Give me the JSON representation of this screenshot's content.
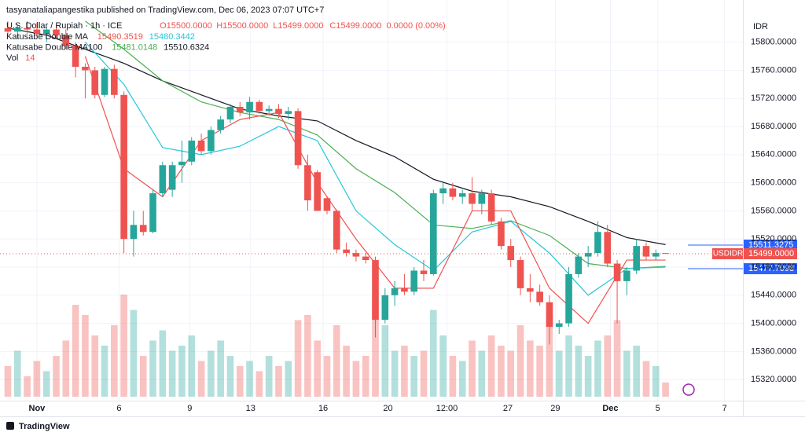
{
  "chart_data": {
    "type": "candlestick",
    "header": "tasyanataliapangestika published on TradingView.com, Dec 06, 2023 07:07 UTC+7",
    "symbol": "U.S. Dollar / Rupiah · 1h · ICE",
    "ohlc_legend": [
      {
        "text": "O15500.0000",
        "color": "#ef5350"
      },
      {
        "text": "H15500.0000",
        "color": "#ef5350"
      },
      {
        "text": "L15499.0000",
        "color": "#ef5350"
      },
      {
        "text": "C15499.0000",
        "color": "#ef5350"
      },
      {
        "text": "0.0000 (0.00%)",
        "color": "#ef5350"
      }
    ],
    "indicators": [
      {
        "name": "Katusabe Double MA",
        "values": [
          {
            "label": "15490.3519",
            "color": "#ef5350"
          },
          {
            "label": "15480.3442",
            "color": "#26c6da"
          }
        ]
      },
      {
        "name": "Katusabe Double MA100",
        "values": [
          {
            "label": "15481.0148",
            "color": "#4caf50"
          },
          {
            "label": "15510.6324",
            "color": "#131722"
          }
        ]
      },
      {
        "name": "Vol",
        "values": [
          {
            "label": "14",
            "color": "#ef5350"
          }
        ]
      }
    ],
    "currency": "IDR",
    "brand": "TradingView",
    "up_color": "#26a69a",
    "down_color": "#ef5350",
    "grid": true,
    "xlim": [
      0,
      76
    ],
    "ylim": [
      15290,
      15860
    ],
    "yticks": [
      {
        "value": 15320,
        "label": "15320.0000"
      },
      {
        "value": 15360,
        "label": "15360.0000"
      },
      {
        "value": 15400,
        "label": "15400.0000"
      },
      {
        "value": 15440,
        "label": "15440.0000"
      },
      {
        "value": 15480,
        "label": "15480.0000"
      },
      {
        "value": 15520,
        "label": "15520.0000"
      },
      {
        "value": 15560,
        "label": "15560.0000"
      },
      {
        "value": 15600,
        "label": "15600.0000"
      },
      {
        "value": 15640,
        "label": "15640.0000"
      },
      {
        "value": 15680,
        "label": "15680.0000"
      },
      {
        "value": 15720,
        "label": "15720.0000"
      },
      {
        "value": 15760,
        "label": "15760.0000"
      },
      {
        "value": 15800,
        "label": "15800.0000"
      }
    ],
    "xticks": [
      {
        "value": 3,
        "label": "Nov"
      },
      {
        "value": 11.5,
        "label": "6"
      },
      {
        "value": 18.8,
        "label": "9"
      },
      {
        "value": 25.1,
        "label": "13"
      },
      {
        "value": 32.6,
        "label": "16"
      },
      {
        "value": 39.3,
        "label": "20"
      },
      {
        "value": 45.4,
        "label": "12:00"
      },
      {
        "value": 51.7,
        "label": "27"
      },
      {
        "value": 56.6,
        "label": "29"
      },
      {
        "value": 62.3,
        "label": "Dec"
      },
      {
        "value": 67.2,
        "label": "5"
      },
      {
        "value": 74.1,
        "label": "7"
      }
    ],
    "candles": [
      [
        15820,
        15830,
        15810,
        15815
      ],
      [
        15815,
        15825,
        15805,
        15820
      ],
      [
        15820,
        15830,
        15812,
        15818
      ],
      [
        15818,
        15828,
        15808,
        15812
      ],
      [
        15812,
        15822,
        15800,
        15818
      ],
      [
        15818,
        15826,
        15806,
        15810
      ],
      [
        15810,
        15818,
        15790,
        15795
      ],
      [
        15795,
        15800,
        15750,
        15765
      ],
      [
        15765,
        15770,
        15720,
        15760
      ],
      [
        15760,
        15765,
        15720,
        15725
      ],
      [
        15725,
        15765,
        15722,
        15762
      ],
      [
        15762,
        15768,
        15720,
        15725
      ],
      [
        15725,
        15730,
        15500,
        15520
      ],
      [
        15520,
        15560,
        15495,
        15540
      ],
      [
        15540,
        15560,
        15525,
        15530
      ],
      [
        15530,
        15590,
        15528,
        15585
      ],
      [
        15585,
        15630,
        15580,
        15625
      ],
      [
        15590,
        15630,
        15580,
        15625
      ],
      [
        15625,
        15660,
        15600,
        15630
      ],
      [
        15630,
        15665,
        15625,
        15660
      ],
      [
        15660,
        15670,
        15640,
        15645
      ],
      [
        15645,
        15680,
        15640,
        15675
      ],
      [
        15675,
        15695,
        15670,
        15690
      ],
      [
        15690,
        15712,
        15685,
        15708
      ],
      [
        15708,
        15715,
        15695,
        15700
      ],
      [
        15700,
        15722,
        15690,
        15715
      ],
      [
        15715,
        15718,
        15698,
        15702
      ],
      [
        15702,
        15710,
        15695,
        15705
      ],
      [
        15705,
        15712,
        15692,
        15698
      ],
      [
        15698,
        15708,
        15690,
        15702
      ],
      [
        15702,
        15706,
        15620,
        15625
      ],
      [
        15625,
        15640,
        15560,
        15575
      ],
      [
        15615,
        15618,
        15560,
        15560
      ],
      [
        15578,
        15580,
        15555,
        15560
      ],
      [
        15560,
        15562,
        15500,
        15505
      ],
      [
        15505,
        15515,
        15495,
        15500
      ],
      [
        15500,
        15505,
        15488,
        15495
      ],
      [
        15495,
        15500,
        15485,
        15490
      ],
      [
        15490,
        15495,
        15380,
        15405
      ],
      [
        15405,
        15450,
        15400,
        15440
      ],
      [
        15440,
        15460,
        15425,
        15450
      ],
      [
        15450,
        15470,
        15440,
        15445
      ],
      [
        15445,
        15480,
        15440,
        15475
      ],
      [
        15475,
        15490,
        15460,
        15470
      ],
      [
        15470,
        15590,
        15468,
        15585
      ],
      [
        15585,
        15600,
        15570,
        15592
      ],
      [
        15592,
        15600,
        15575,
        15580
      ],
      [
        15580,
        15590,
        15570,
        15585
      ],
      [
        15585,
        15608,
        15560,
        15570
      ],
      [
        15570,
        15590,
        15555,
        15585
      ],
      [
        15585,
        15590,
        15540,
        15545
      ],
      [
        15545,
        15550,
        15505,
        15510
      ],
      [
        15510,
        15520,
        15480,
        15490
      ],
      [
        15490,
        15495,
        15440,
        15450
      ],
      [
        15450,
        15470,
        15430,
        15445
      ],
      [
        15445,
        15455,
        15425,
        15430
      ],
      [
        15430,
        15440,
        15370,
        15395
      ],
      [
        15395,
        15405,
        15385,
        15400
      ],
      [
        15400,
        15480,
        15395,
        15470
      ],
      [
        15470,
        15500,
        15465,
        15495
      ],
      [
        15495,
        15510,
        15480,
        15500
      ],
      [
        15500,
        15545,
        15495,
        15530
      ],
      [
        15530,
        15540,
        15480,
        15485
      ],
      [
        15485,
        15490,
        15400,
        15460
      ],
      [
        15460,
        15480,
        15440,
        15475
      ],
      [
        15475,
        15520,
        15470,
        15510
      ],
      [
        15510,
        15515,
        15490,
        15495
      ],
      [
        15495,
        15505,
        15490,
        15500
      ],
      [
        15500,
        15500,
        15499,
        15499
      ]
    ],
    "volume": [
      30,
      45,
      20,
      35,
      25,
      40,
      55,
      90,
      80,
      60,
      50,
      70,
      100,
      85,
      40,
      55,
      65,
      45,
      50,
      60,
      35,
      45,
      55,
      40,
      30,
      35,
      25,
      40,
      30,
      35,
      75,
      80,
      55,
      40,
      70,
      50,
      35,
      40,
      95,
      70,
      45,
      50,
      40,
      45,
      85,
      60,
      40,
      35,
      55,
      45,
      60,
      50,
      45,
      70,
      55,
      50,
      80,
      45,
      60,
      50,
      40,
      55,
      60,
      75,
      45,
      50,
      35,
      30,
      14
    ],
    "volume_ylim": [
      0,
      100
    ],
    "lines": {
      "x": [
        0,
        4,
        8,
        12,
        16,
        20,
        24,
        28,
        32,
        36,
        40,
        44,
        48,
        52,
        56,
        60,
        64,
        68
      ],
      "series": [
        {
          "color": "#131722",
          "values": [
            15820,
            15810,
            15790,
            15770,
            15745,
            15725,
            15705,
            15695,
            15688,
            15660,
            15637,
            15605,
            15588,
            15580,
            15566,
            15545,
            15522,
            15512
          ]
        },
        {
          "color": "#4caf50",
          "values": [
            null,
            null,
            15830,
            15790,
            15745,
            15715,
            15700,
            15690,
            15668,
            15620,
            15586,
            15540,
            15535,
            15546,
            15525,
            15485,
            15478,
            15481
          ]
        },
        {
          "color": "#26c6da",
          "values": [
            null,
            null,
            15800,
            15740,
            15650,
            15640,
            15652,
            15680,
            15660,
            15560,
            15512,
            15475,
            15530,
            15545,
            15500,
            15440,
            15478,
            15480
          ]
        },
        {
          "color": "#ef5350",
          "values": [
            null,
            null,
            15780,
            15620,
            15580,
            15660,
            15690,
            15700,
            15600,
            15520,
            15450,
            15450,
            15560,
            15560,
            15450,
            15400,
            15490,
            15490
          ]
        }
      ]
    },
    "price_labels": [
      {
        "value": 15511.3275,
        "label": "15511.3275",
        "color": "#2962ff"
      },
      {
        "value": 15499,
        "label": "15499.0000",
        "color": "#ef5350",
        "tag": "USDIDR"
      },
      {
        "value": 15477.7098,
        "label": "15477.7098",
        "color": "#2962ff"
      }
    ]
  }
}
